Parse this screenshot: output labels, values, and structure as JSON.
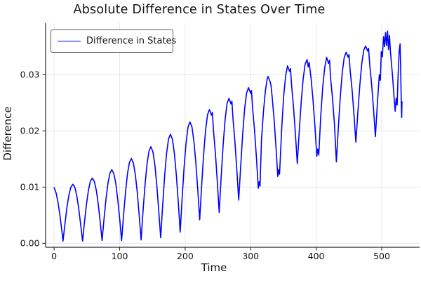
{
  "title": "Absolute Difference in States Over Time",
  "legend": {
    "label": "Difference in States"
  },
  "colors": {
    "line": "#0000ff",
    "grid": "#e8e8e8",
    "spine": "#2a2a2a",
    "text": "#141414",
    "background": "#ffffff"
  },
  "chart_data": {
    "type": "line",
    "title": "Absolute Difference in States Over Time",
    "xlabel": "Time",
    "ylabel": "Difference",
    "series_name": "Difference in States",
    "legend_position": "upper-left",
    "grid": true,
    "xlim": [
      -13,
      560
    ],
    "ylim": [
      -0.0007,
      0.0393
    ],
    "xticks": [
      {
        "v": 0,
        "label": "0"
      },
      {
        "v": 100,
        "label": "100"
      },
      {
        "v": 200,
        "label": "200"
      },
      {
        "v": 300,
        "label": "300"
      },
      {
        "v": 400,
        "label": "400"
      },
      {
        "v": 500,
        "label": "500"
      }
    ],
    "yticks": [
      {
        "v": 0.0,
        "label": "0.00"
      },
      {
        "v": 0.01,
        "label": "0.01"
      },
      {
        "v": 0.02,
        "label": "0.02"
      },
      {
        "v": 0.03,
        "label": "0.03"
      }
    ],
    "points": [
      [
        0,
        0.0099
      ],
      [
        3,
        0.009
      ],
      [
        6,
        0.0073
      ],
      [
        9,
        0.0049
      ],
      [
        12,
        0.0021
      ],
      [
        13.6,
        0.0004
      ],
      [
        16.6,
        0.0035
      ],
      [
        19.6,
        0.0064
      ],
      [
        22.6,
        0.0086
      ],
      [
        25.6,
        0.01
      ],
      [
        28.5,
        0.0105
      ],
      [
        31.6,
        0.01
      ],
      [
        34.6,
        0.0085
      ],
      [
        37.6,
        0.0062
      ],
      [
        40.6,
        0.0033
      ],
      [
        43.4,
        0.0004
      ],
      [
        46.4,
        0.0039
      ],
      [
        49.4,
        0.007
      ],
      [
        52.4,
        0.0095
      ],
      [
        55.4,
        0.0111
      ],
      [
        58.3,
        0.0116
      ],
      [
        61.4,
        0.011
      ],
      [
        64.4,
        0.0094
      ],
      [
        67.4,
        0.0069
      ],
      [
        70.4,
        0.0037
      ],
      [
        73.2,
        0.0005
      ],
      [
        76.2,
        0.0044
      ],
      [
        79.2,
        0.0079
      ],
      [
        82.2,
        0.0107
      ],
      [
        85.2,
        0.0125
      ],
      [
        88.1,
        0.0131
      ],
      [
        91.2,
        0.0124
      ],
      [
        94.2,
        0.0106
      ],
      [
        97.2,
        0.0077
      ],
      [
        100.2,
        0.0042
      ],
      [
        103,
        0.0005
      ],
      [
        106,
        0.005
      ],
      [
        109,
        0.0091
      ],
      [
        112,
        0.0124
      ],
      [
        115,
        0.0144
      ],
      [
        117.9,
        0.0151
      ],
      [
        121,
        0.0143
      ],
      [
        124,
        0.0122
      ],
      [
        127,
        0.009
      ],
      [
        130,
        0.0048
      ],
      [
        132.8,
        0.0006
      ],
      [
        135.8,
        0.0058
      ],
      [
        138.8,
        0.0104
      ],
      [
        141.8,
        0.0141
      ],
      [
        144.8,
        0.0164
      ],
      [
        147.7,
        0.0172
      ],
      [
        150.8,
        0.0163
      ],
      [
        153.8,
        0.014
      ],
      [
        156.8,
        0.0103
      ],
      [
        159.8,
        0.0057
      ],
      [
        162.6,
        0.001
      ],
      [
        165.6,
        0.0067
      ],
      [
        168.6,
        0.0119
      ],
      [
        171.6,
        0.016
      ],
      [
        174.6,
        0.0186
      ],
      [
        177.5,
        0.0194
      ],
      [
        180.6,
        0.0185
      ],
      [
        183.6,
        0.0159
      ],
      [
        186.6,
        0.012
      ],
      [
        189.6,
        0.0071
      ],
      [
        192.4,
        0.002
      ],
      [
        195.4,
        0.0081
      ],
      [
        198.4,
        0.0136
      ],
      [
        201.4,
        0.0179
      ],
      [
        204.4,
        0.0207
      ],
      [
        207.3,
        0.0216
      ],
      [
        210.4,
        0.0207
      ],
      [
        213.4,
        0.0181
      ],
      [
        216.4,
        0.0142
      ],
      [
        219.4,
        0.0093
      ],
      [
        222.2,
        0.0042
      ],
      [
        225.2,
        0.0103
      ],
      [
        228.2,
        0.0158
      ],
      [
        231.2,
        0.0201
      ],
      [
        234.2,
        0.0229
      ],
      [
        237.1,
        0.0238
      ],
      [
        240.2,
        0.0228
      ],
      [
        241.6,
        0.0233
      ],
      [
        243.2,
        0.0202
      ],
      [
        246.2,
        0.016
      ],
      [
        249.2,
        0.0108
      ],
      [
        252,
        0.0055
      ],
      [
        255,
        0.0118
      ],
      [
        258,
        0.0175
      ],
      [
        261,
        0.022
      ],
      [
        264,
        0.0249
      ],
      [
        266.9,
        0.0258
      ],
      [
        270,
        0.0248
      ],
      [
        271.4,
        0.0253
      ],
      [
        273,
        0.0223
      ],
      [
        276,
        0.0181
      ],
      [
        279,
        0.0129
      ],
      [
        281.8,
        0.0077
      ],
      [
        284.8,
        0.0139
      ],
      [
        287.8,
        0.0195
      ],
      [
        290.8,
        0.024
      ],
      [
        293.8,
        0.0268
      ],
      [
        296.7,
        0.0277
      ],
      [
        299.8,
        0.0267
      ],
      [
        301.2,
        0.0272
      ],
      [
        302.8,
        0.0242
      ],
      [
        305.8,
        0.0202
      ],
      [
        308.8,
        0.0152
      ],
      [
        311.6,
        0.0098
      ],
      [
        313.1,
        0.011
      ],
      [
        314.3,
        0.0102
      ],
      [
        316.6,
        0.0185
      ],
      [
        319.6,
        0.0235
      ],
      [
        322.6,
        0.0272
      ],
      [
        325.1,
        0.0292
      ],
      [
        326.5,
        0.0297
      ],
      [
        329.6,
        0.0288
      ],
      [
        331,
        0.0281
      ],
      [
        332.6,
        0.0263
      ],
      [
        335.6,
        0.0223
      ],
      [
        338.6,
        0.0172
      ],
      [
        341.4,
        0.0119
      ],
      [
        342.9,
        0.0131
      ],
      [
        344.1,
        0.0123
      ],
      [
        347.4,
        0.0205
      ],
      [
        350.4,
        0.0262
      ],
      [
        353.4,
        0.0298
      ],
      [
        356.3,
        0.0316
      ],
      [
        359.4,
        0.0306
      ],
      [
        360.8,
        0.0311
      ],
      [
        362.4,
        0.0282
      ],
      [
        365.4,
        0.0243
      ],
      [
        368.4,
        0.0193
      ],
      [
        371.2,
        0.0142
      ],
      [
        374.2,
        0.02
      ],
      [
        377.2,
        0.0252
      ],
      [
        380.2,
        0.0293
      ],
      [
        383.2,
        0.0319
      ],
      [
        386.1,
        0.0327
      ],
      [
        387.9,
        0.0314
      ],
      [
        389.3,
        0.0322
      ],
      [
        392.2,
        0.0294
      ],
      [
        395.2,
        0.0255
      ],
      [
        398.2,
        0.0207
      ],
      [
        401,
        0.0155
      ],
      [
        402.5,
        0.0168
      ],
      [
        403.9,
        0.0157
      ],
      [
        406.9,
        0.0226
      ],
      [
        409.9,
        0.0277
      ],
      [
        412.9,
        0.0312
      ],
      [
        415.9,
        0.0331
      ],
      [
        418.9,
        0.032
      ],
      [
        420.4,
        0.0326
      ],
      [
        421.9,
        0.0295
      ],
      [
        424.9,
        0.0258
      ],
      [
        427.9,
        0.0211
      ],
      [
        430.8,
        0.0145
      ],
      [
        433.8,
        0.0206
      ],
      [
        436.8,
        0.0261
      ],
      [
        439.8,
        0.0304
      ],
      [
        442.8,
        0.0331
      ],
      [
        445.7,
        0.034
      ],
      [
        448.8,
        0.0331
      ],
      [
        450.1,
        0.0336
      ],
      [
        451.8,
        0.0308
      ],
      [
        454.8,
        0.0273
      ],
      [
        457.8,
        0.0227
      ],
      [
        460.6,
        0.018
      ],
      [
        463.6,
        0.0233
      ],
      [
        466.6,
        0.0281
      ],
      [
        469.6,
        0.032
      ],
      [
        472.6,
        0.0344
      ],
      [
        475.5,
        0.0351
      ],
      [
        478.6,
        0.0342
      ],
      [
        480,
        0.0347
      ],
      [
        481.6,
        0.032
      ],
      [
        484.6,
        0.0283
      ],
      [
        487.6,
        0.0238
      ],
      [
        490.4,
        0.019
      ],
      [
        493.4,
        0.0248
      ],
      [
        496.4,
        0.03
      ],
      [
        498,
        0.029
      ],
      [
        499.4,
        0.0341
      ],
      [
        501,
        0.0332
      ],
      [
        502.9,
        0.0368
      ],
      [
        504.4,
        0.035
      ],
      [
        505.9,
        0.0375
      ],
      [
        507.4,
        0.0352
      ],
      [
        508.9,
        0.0378
      ],
      [
        510.4,
        0.0345
      ],
      [
        511.9,
        0.037
      ],
      [
        513.4,
        0.034
      ],
      [
        516.4,
        0.03
      ],
      [
        519.4,
        0.0252
      ],
      [
        520.6,
        0.0235
      ],
      [
        522.1,
        0.0258
      ],
      [
        523.6,
        0.0246
      ],
      [
        525.1,
        0.03
      ],
      [
        526.6,
        0.034
      ],
      [
        528.1,
        0.0355
      ],
      [
        529.1,
        0.0305
      ],
      [
        529.9,
        0.0248
      ],
      [
        530.5,
        0.0224
      ],
      [
        531,
        0.0252
      ]
    ]
  }
}
